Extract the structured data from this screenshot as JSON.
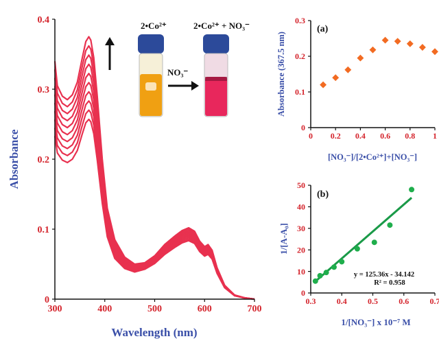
{
  "colors": {
    "spectra": "#e8314f",
    "scatter_a": "#f26b22",
    "scatter_b": "#1fae4c",
    "fit_line": "#1a9a48",
    "axis_labels": "#3a4fa8",
    "tick_labels": "#d4232b"
  },
  "inset": {
    "vial_left_caption": "2•Co²⁺",
    "vial_right_caption": "2•Co²⁺ + NO₃⁻",
    "arrow_label": "NO₃⁻",
    "vial_left_color": "#f0a012",
    "vial_right_color": "#e8275c",
    "cap_color": "#2c4a9a"
  },
  "chart_data": [
    {
      "type": "line",
      "xlabel": "Wavelength (nm)",
      "ylabel": "Absorbance",
      "xlim": [
        300,
        700
      ],
      "ylim": [
        0,
        0.4
      ],
      "xticks": [
        "300",
        "400",
        "500",
        "600",
        "700"
      ],
      "yticks": [
        "0",
        "0.1",
        "0.2",
        "0.3",
        "0.4"
      ],
      "peak_scales": [
        1.0,
        0.965,
        0.93,
        0.895,
        0.86,
        0.825,
        0.79,
        0.755,
        0.72,
        0.685
      ],
      "spectrum_shape": {
        "x": [
          300,
          305,
          315,
          325,
          335,
          345,
          355,
          362,
          368,
          372,
          378,
          385,
          395,
          405,
          420,
          440,
          460,
          480,
          500,
          520,
          540,
          555,
          568,
          580,
          590,
          600,
          607,
          615,
          625,
          640,
          660,
          680,
          700
        ],
        "y": [
          0.34,
          0.305,
          0.29,
          0.285,
          0.292,
          0.31,
          0.345,
          0.368,
          0.375,
          0.37,
          0.345,
          0.29,
          0.2,
          0.13,
          0.085,
          0.06,
          0.05,
          0.052,
          0.062,
          0.078,
          0.09,
          0.098,
          0.102,
          0.097,
          0.083,
          0.075,
          0.078,
          0.07,
          0.045,
          0.02,
          0.006,
          0.002,
          0.0
        ]
      },
      "low_band_scales": [
        1.0,
        0.98,
        0.96,
        0.94,
        0.92,
        0.9,
        0.88,
        0.86,
        0.84,
        0.82
      ]
    },
    {
      "type": "scatter",
      "label": "(a)",
      "xlabel": "[NO₃⁻]/[2•Co²⁺]+[NO₃⁻]",
      "ylabel": "Absorbance (367.5 nm)",
      "xlim": [
        0,
        1
      ],
      "ylim": [
        0,
        0.3
      ],
      "xticks": [
        "0",
        "0.2",
        "0.4",
        "0.6",
        "0.8",
        "1"
      ],
      "yticks": [
        "0",
        "0.1",
        "0.2",
        "0.3"
      ],
      "x": [
        0.1,
        0.2,
        0.3,
        0.4,
        0.5,
        0.6,
        0.7,
        0.8,
        0.9,
        1.0
      ],
      "y": [
        0.12,
        0.14,
        0.162,
        0.195,
        0.218,
        0.245,
        0.242,
        0.235,
        0.225,
        0.213
      ]
    },
    {
      "type": "scatter",
      "label": "(b)",
      "xlabel": "1/[NO₃⁻] x 10⁻⁷ M",
      "ylabel": "1/[A-A₀]",
      "xlim": [
        0.3,
        0.7
      ],
      "ylim": [
        0,
        50
      ],
      "xticks": [
        "0.3",
        "0.4",
        "0.5",
        "0.6",
        "0.7"
      ],
      "yticks": [
        "0",
        "10",
        "20",
        "30",
        "40",
        "50"
      ],
      "x": [
        0.315,
        0.33,
        0.35,
        0.375,
        0.4,
        0.45,
        0.505,
        0.555,
        0.625
      ],
      "y": [
        5.5,
        8.0,
        9.5,
        12.0,
        14.5,
        20.5,
        23.5,
        31.5,
        48.0
      ],
      "fit": {
        "slope": 125.36,
        "intercept": -34.142,
        "x_range": [
          0.31,
          0.625
        ]
      },
      "equation": "y = 125.36x - 34.142",
      "r2": "R² = 0.958"
    }
  ]
}
